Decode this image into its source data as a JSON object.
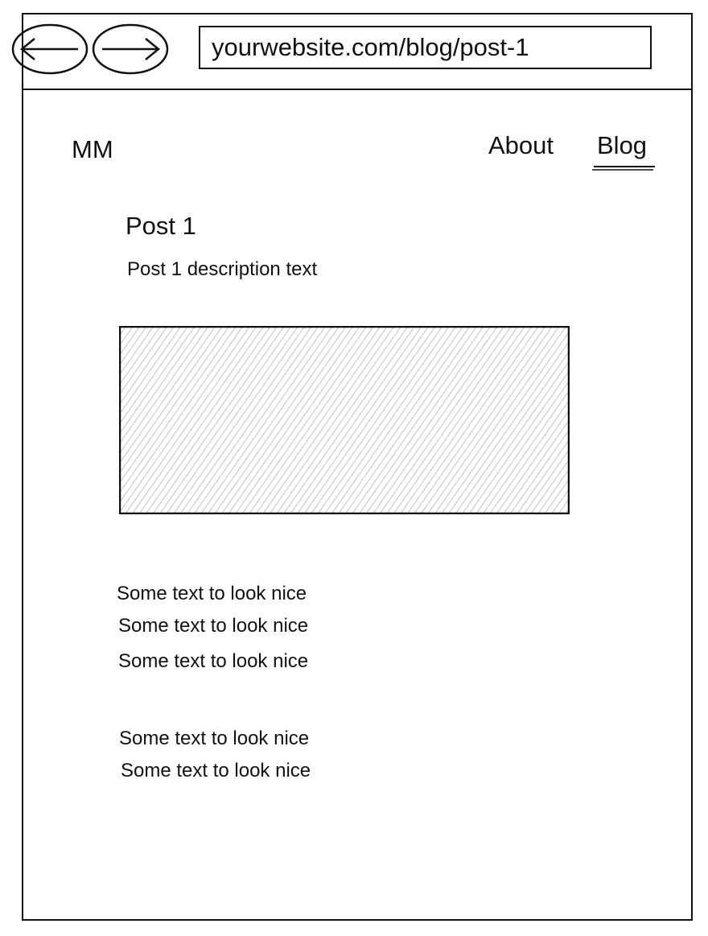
{
  "browser": {
    "url": "yourwebsite.com/blog/post-1",
    "back_icon": "arrow-left-icon",
    "forward_icon": "arrow-right-icon"
  },
  "header": {
    "logo": "MM",
    "nav": [
      {
        "label": "About",
        "active": false
      },
      {
        "label": "Blog",
        "active": true
      }
    ]
  },
  "post": {
    "title": "Post 1",
    "description": "Post 1 description text",
    "image_placeholder": "hatched-image-placeholder",
    "paragraphs": [
      [
        "Some text to look nice",
        "Some text to look nice",
        "Some text to look nice"
      ],
      [
        "Some text to look nice",
        "Some text to look nice"
      ]
    ]
  },
  "colors": {
    "ink": "#111111",
    "hatch": "#999999",
    "background": "#ffffff"
  }
}
